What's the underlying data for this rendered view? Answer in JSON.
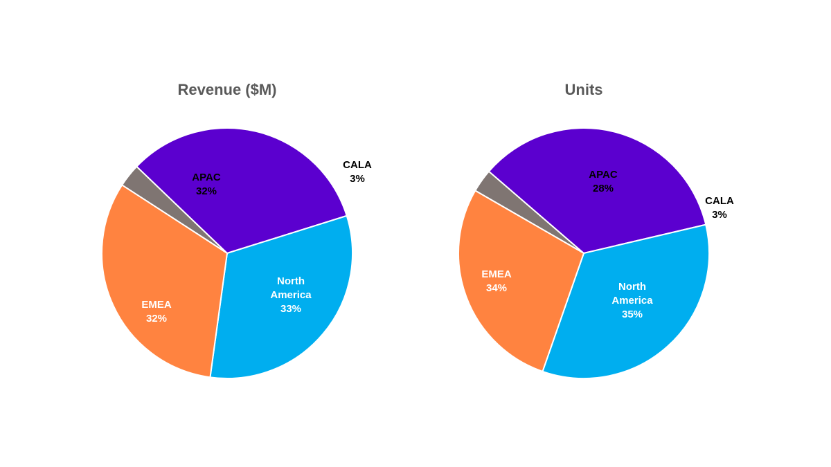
{
  "chart_data": [
    {
      "type": "pie",
      "title": "Revenue ($M)",
      "slices": [
        {
          "name": "CALA",
          "value": 3,
          "label": "3%",
          "color": "#7F7572"
        },
        {
          "name": "North America",
          "value": 33,
          "label": "33%",
          "color": "#5B00CF"
        },
        {
          "name": "EMEA",
          "value": 32,
          "label": "32%",
          "color": "#00AEEF"
        },
        {
          "name": "APAC",
          "value": 32,
          "label": "32%",
          "color": "#FF8340"
        }
      ]
    },
    {
      "type": "pie",
      "title": "Units",
      "slices": [
        {
          "name": "CALA",
          "value": 3,
          "label": "3%",
          "color": "#7F7572"
        },
        {
          "name": "North America",
          "value": 35,
          "label": "35%",
          "color": "#5B00CF"
        },
        {
          "name": "EMEA",
          "value": 34,
          "label": "34%",
          "color": "#00AEEF"
        },
        {
          "name": "APAC",
          "value": 28,
          "label": "28%",
          "color": "#FF8340"
        }
      ]
    }
  ]
}
